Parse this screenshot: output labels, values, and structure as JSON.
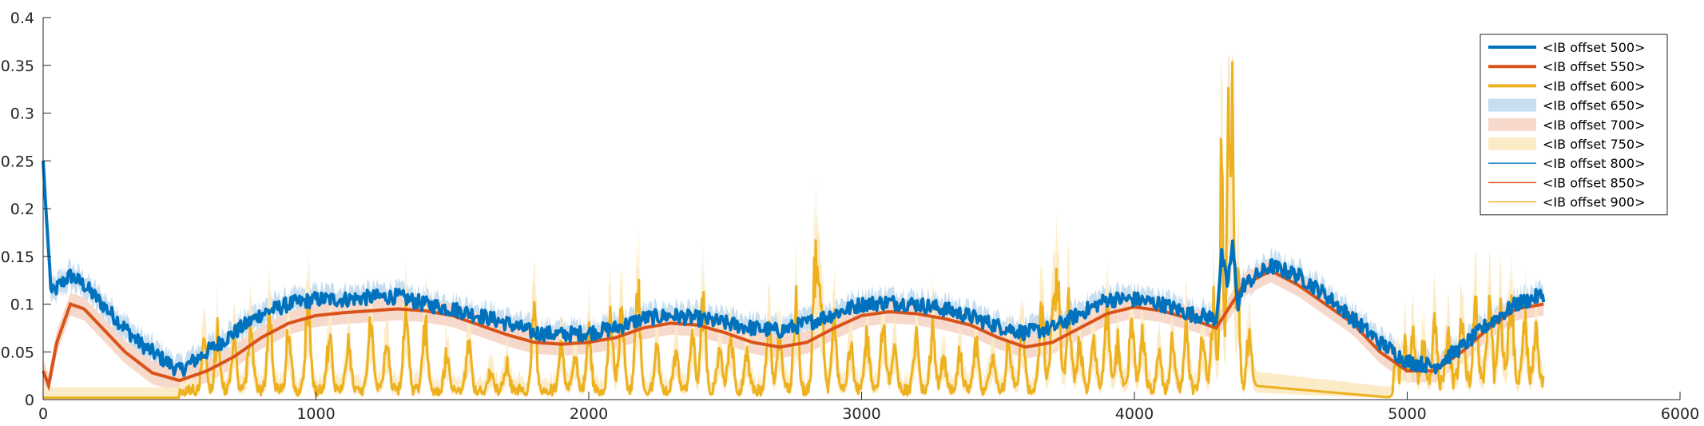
{
  "chart_data": {
    "type": "line",
    "title": "",
    "xlabel": "",
    "ylabel": "",
    "xlim": [
      0,
      6000
    ],
    "ylim": [
      0,
      0.4
    ],
    "x_ticks": [
      0,
      1000,
      2000,
      3000,
      4000,
      5000,
      6000
    ],
    "y_ticks": [
      0,
      0.05,
      0.1,
      0.15,
      0.2,
      0.25,
      0.3,
      0.35,
      0.4
    ],
    "x_tick_labels": [
      "0",
      "1000",
      "2000",
      "3000",
      "4000",
      "5000",
      "6000"
    ],
    "y_tick_labels": [
      "0",
      "0.05",
      "0.1",
      "0.15",
      "0.2",
      "0.25",
      "0.3",
      "0.35",
      "0.4"
    ],
    "grid": false,
    "legend_position": "top-right",
    "series_colors": {
      "blue": "#0072BD",
      "orange": "#D95319",
      "yellow": "#EDB120",
      "blue_band": "#C6DEF0",
      "orange_band": "#F7D9CC",
      "yellow_band": "#FBEBC6"
    },
    "legend": [
      {
        "name": "<IB offset 500>",
        "kind": "thick-line",
        "color": "#0072BD"
      },
      {
        "name": "<IB offset 550>",
        "kind": "thick-line",
        "color": "#D95319"
      },
      {
        "name": "<IB offset 600>",
        "kind": "thick-line",
        "color": "#EDB120"
      },
      {
        "name": "<IB offset 650>",
        "kind": "band",
        "color": "#C6DEF0"
      },
      {
        "name": "<IB offset 700>",
        "kind": "band",
        "color": "#F7D9CC"
      },
      {
        "name": "<IB offset 750>",
        "kind": "band",
        "color": "#FBEBC6"
      },
      {
        "name": "<IB offset 800>",
        "kind": "thin-line",
        "color": "#0072BD"
      },
      {
        "name": "<IB offset 850>",
        "kind": "thin-line",
        "color": "#D95319"
      },
      {
        "name": "<IB offset 900>",
        "kind": "thin-line",
        "color": "#EDB120"
      }
    ],
    "series": [
      {
        "id": "blue",
        "x": [
          0,
          10,
          30,
          60,
          100,
          150,
          200,
          250,
          300,
          350,
          400,
          450,
          500,
          600,
          700,
          800,
          900,
          1000,
          1100,
          1200,
          1300,
          1400,
          1500,
          1600,
          1700,
          1800,
          1900,
          2000,
          2100,
          2200,
          2300,
          2400,
          2500,
          2600,
          2700,
          2800,
          2900,
          3000,
          3100,
          3200,
          3300,
          3400,
          3500,
          3600,
          3700,
          3800,
          3900,
          4000,
          4100,
          4200,
          4300,
          4320,
          4340,
          4360,
          4380,
          4400,
          4500,
          4600,
          4700,
          4800,
          4900,
          5000,
          5100,
          5200,
          5300,
          5400,
          5500
        ],
        "y": [
          0.25,
          0.2,
          0.11,
          0.12,
          0.13,
          0.12,
          0.105,
          0.09,
          0.075,
          0.06,
          0.05,
          0.04,
          0.03,
          0.05,
          0.07,
          0.09,
          0.1,
          0.105,
          0.105,
          0.107,
          0.108,
          0.1,
          0.095,
          0.088,
          0.08,
          0.07,
          0.068,
          0.07,
          0.075,
          0.085,
          0.088,
          0.085,
          0.08,
          0.075,
          0.072,
          0.08,
          0.09,
          0.1,
          0.102,
          0.1,
          0.095,
          0.087,
          0.077,
          0.07,
          0.075,
          0.09,
          0.105,
          0.105,
          0.1,
          0.09,
          0.085,
          0.15,
          0.12,
          0.16,
          0.1,
          0.12,
          0.14,
          0.13,
          0.11,
          0.085,
          0.06,
          0.04,
          0.035,
          0.055,
          0.08,
          0.1,
          0.11
        ]
      },
      {
        "id": "orange",
        "x": [
          0,
          20,
          50,
          100,
          150,
          200,
          300,
          400,
          500,
          600,
          700,
          800,
          900,
          1000,
          1100,
          1200,
          1300,
          1400,
          1500,
          1600,
          1700,
          1800,
          1900,
          2000,
          2100,
          2200,
          2300,
          2400,
          2500,
          2600,
          2700,
          2800,
          2900,
          3000,
          3100,
          3200,
          3300,
          3400,
          3500,
          3600,
          3700,
          3800,
          3900,
          4000,
          4100,
          4200,
          4300,
          4400,
          4500,
          4600,
          4700,
          4800,
          4900,
          5000,
          5100,
          5200,
          5300,
          5400,
          5500
        ],
        "y": [
          0.03,
          0.015,
          0.06,
          0.1,
          0.095,
          0.08,
          0.05,
          0.028,
          0.02,
          0.03,
          0.045,
          0.065,
          0.08,
          0.088,
          0.091,
          0.093,
          0.095,
          0.093,
          0.088,
          0.078,
          0.068,
          0.06,
          0.058,
          0.06,
          0.065,
          0.075,
          0.08,
          0.078,
          0.07,
          0.06,
          0.055,
          0.06,
          0.075,
          0.088,
          0.092,
          0.09,
          0.085,
          0.078,
          0.065,
          0.055,
          0.06,
          0.075,
          0.09,
          0.097,
          0.093,
          0.085,
          0.075,
          0.12,
          0.135,
          0.12,
          0.1,
          0.08,
          0.05,
          0.03,
          0.03,
          0.05,
          0.075,
          0.095,
          0.1
        ]
      }
    ],
    "yellow_signal": {
      "baseline_end_x": 500,
      "spike_x": [
        590,
        640,
        700,
        760,
        830,
        900,
        970,
        1050,
        1120,
        1200,
        1260,
        1330,
        1400,
        1480,
        1560,
        1640,
        1700,
        1800,
        1900,
        1950,
        2000,
        2080,
        2120,
        2180,
        2250,
        2320,
        2380,
        2420,
        2480,
        2520,
        2580,
        2660,
        2700,
        2760,
        2830,
        2850,
        2900,
        2960,
        3020,
        3080,
        3120,
        3200,
        3260,
        3300,
        3360,
        3420,
        3480,
        3540,
        3590,
        3660,
        3700,
        3720,
        3760,
        3800,
        3850,
        3900,
        3940,
        3990,
        4030,
        4090,
        4140,
        4190,
        4250,
        4290,
        4320,
        4345,
        4360,
        4380,
        4420,
        4960,
        4990,
        5020,
        5060,
        5100,
        5150,
        5200,
        5250,
        5300,
        5340,
        5380,
        5430,
        5470
      ],
      "spike_y": [
        0.05,
        0.06,
        0.05,
        0.07,
        0.08,
        0.06,
        0.09,
        0.06,
        0.05,
        0.08,
        0.06,
        0.09,
        0.07,
        0.04,
        0.05,
        0.02,
        0.03,
        0.08,
        0.05,
        0.04,
        0.06,
        0.08,
        0.09,
        0.11,
        0.05,
        0.04,
        0.06,
        0.09,
        0.05,
        0.06,
        0.04,
        0.07,
        0.06,
        0.09,
        0.13,
        0.11,
        0.07,
        0.05,
        0.06,
        0.08,
        0.05,
        0.06,
        0.07,
        0.03,
        0.04,
        0.05,
        0.04,
        0.05,
        0.06,
        0.08,
        0.07,
        0.11,
        0.09,
        0.05,
        0.06,
        0.09,
        0.05,
        0.07,
        0.06,
        0.04,
        0.05,
        0.07,
        0.06,
        0.09,
        0.25,
        0.31,
        0.3,
        0.12,
        0.06,
        0.02,
        0.04,
        0.05,
        0.04,
        0.06,
        0.05,
        0.07,
        0.08,
        0.09,
        0.08,
        0.09,
        0.07,
        0.06
      ]
    }
  }
}
